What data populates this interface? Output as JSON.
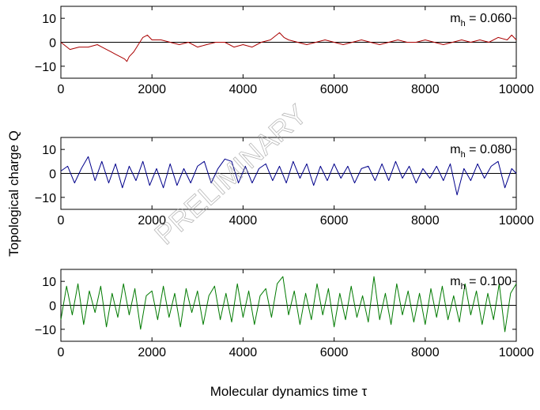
{
  "figure": {
    "ylabel": "Topological charge Q",
    "xlabel": "Molecular dynamics time τ",
    "watermark": "PRELIMINARY"
  },
  "chart_data": [
    {
      "type": "line",
      "annotation": {
        "main": "m",
        "sub": "h",
        "value": " = 0.060"
      },
      "xlim": [
        0,
        10000
      ],
      "ylim": [
        -15,
        15
      ],
      "xticks": [
        0,
        2000,
        4000,
        6000,
        8000,
        10000
      ],
      "yticks": [
        -10,
        0,
        10
      ],
      "xtick_labels": [
        "0",
        "2000",
        "4000",
        "6000",
        "8000",
        "10000"
      ],
      "ytick_labels": [
        "−10",
        "0",
        "10"
      ],
      "grid": false,
      "color": "#aa0000",
      "x": [
        0,
        200,
        400,
        600,
        800,
        1000,
        1100,
        1200,
        1300,
        1400,
        1450,
        1500,
        1600,
        1700,
        1800,
        1900,
        2000,
        2200,
        2400,
        2600,
        2800,
        3000,
        3200,
        3400,
        3600,
        3800,
        4000,
        4200,
        4400,
        4600,
        4800,
        4900,
        5000,
        5200,
        5400,
        5600,
        5800,
        6000,
        6200,
        6400,
        6600,
        6800,
        7000,
        7200,
        7400,
        7600,
        7800,
        8000,
        8200,
        8400,
        8600,
        8800,
        9000,
        9200,
        9400,
        9600,
        9800,
        9900,
        10000
      ],
      "values": [
        0,
        -3,
        -2,
        -2,
        -1,
        -3,
        -4,
        -5,
        -6,
        -7,
        -8,
        -6,
        -4,
        -1,
        2,
        3,
        1,
        1,
        0,
        -1,
        0,
        -2,
        -1,
        0,
        0,
        -2,
        -1,
        -2,
        0,
        1,
        4,
        2,
        1,
        0,
        -1,
        0,
        1,
        0,
        -1,
        0,
        1,
        0,
        -1,
        0,
        1,
        0,
        0,
        1,
        0,
        -1,
        0,
        1,
        0,
        1,
        0,
        2,
        1,
        3,
        1
      ]
    },
    {
      "type": "line",
      "annotation": {
        "main": "m",
        "sub": "h",
        "value": " = 0.080"
      },
      "xlim": [
        0,
        10000
      ],
      "ylim": [
        -15,
        15
      ],
      "xticks": [
        0,
        2000,
        4000,
        6000,
        8000,
        10000
      ],
      "yticks": [
        -10,
        0,
        10
      ],
      "xtick_labels": [
        "0",
        "2000",
        "4000",
        "6000",
        "8000",
        "10000"
      ],
      "ytick_labels": [
        "−10",
        "0",
        "10"
      ],
      "grid": false,
      "color": "#00008b",
      "x": [
        0,
        150,
        300,
        450,
        600,
        750,
        900,
        1050,
        1200,
        1350,
        1500,
        1650,
        1800,
        1950,
        2100,
        2250,
        2400,
        2550,
        2700,
        2850,
        3000,
        3150,
        3300,
        3450,
        3600,
        3750,
        3900,
        4050,
        4200,
        4350,
        4500,
        4650,
        4800,
        4950,
        5100,
        5250,
        5400,
        5550,
        5700,
        5850,
        6000,
        6150,
        6300,
        6450,
        6600,
        6750,
        6900,
        7050,
        7200,
        7350,
        7500,
        7650,
        7800,
        7950,
        8100,
        8250,
        8400,
        8550,
        8700,
        8850,
        9000,
        9150,
        9300,
        9450,
        9600,
        9750,
        9900,
        10000
      ],
      "values": [
        1,
        3,
        -4,
        2,
        7,
        -3,
        5,
        -4,
        4,
        -6,
        3,
        -3,
        5,
        -5,
        2,
        -6,
        4,
        -5,
        2,
        -4,
        3,
        5,
        -4,
        2,
        6,
        5,
        -4,
        3,
        -4,
        2,
        4,
        -3,
        3,
        -4,
        5,
        -2,
        4,
        -5,
        3,
        -3,
        4,
        -2,
        3,
        -4,
        2,
        3,
        -3,
        4,
        -3,
        5,
        -2,
        3,
        -4,
        2,
        -2,
        3,
        -3,
        4,
        -9,
        2,
        -3,
        4,
        -2,
        3,
        5,
        -6,
        2,
        0
      ]
    },
    {
      "type": "line",
      "annotation": {
        "main": "m",
        "sub": "h",
        "value": " = 0.100"
      },
      "xlim": [
        0,
        10000
      ],
      "ylim": [
        -15,
        15
      ],
      "xticks": [
        0,
        2000,
        4000,
        6000,
        8000,
        10000
      ],
      "yticks": [
        -10,
        0,
        10
      ],
      "xtick_labels": [
        "0",
        "2000",
        "4000",
        "6000",
        "8000",
        "10000"
      ],
      "ytick_labels": [
        "−10",
        "0",
        "10"
      ],
      "grid": false,
      "color": "#007a00",
      "x": [
        0,
        125,
        250,
        375,
        500,
        625,
        750,
        875,
        1000,
        1125,
        1250,
        1375,
        1500,
        1625,
        1750,
        1875,
        2000,
        2125,
        2250,
        2375,
        2500,
        2625,
        2750,
        2875,
        3000,
        3125,
        3250,
        3375,
        3500,
        3625,
        3750,
        3875,
        4000,
        4125,
        4250,
        4375,
        4500,
        4625,
        4750,
        4875,
        5000,
        5125,
        5250,
        5375,
        5500,
        5625,
        5750,
        5875,
        6000,
        6125,
        6250,
        6375,
        6500,
        6625,
        6750,
        6875,
        7000,
        7125,
        7250,
        7375,
        7500,
        7625,
        7750,
        7875,
        8000,
        8125,
        8250,
        8375,
        8500,
        8625,
        8750,
        8875,
        9000,
        9125,
        9250,
        9375,
        9500,
        9625,
        9750,
        9875,
        10000
      ],
      "values": [
        -6,
        8,
        -4,
        9,
        -8,
        6,
        -3,
        8,
        -9,
        5,
        -5,
        9,
        -4,
        7,
        -10,
        4,
        6,
        -6,
        8,
        -5,
        5,
        -9,
        7,
        -3,
        6,
        -8,
        4,
        8,
        -6,
        5,
        -7,
        9,
        -5,
        6,
        -8,
        4,
        7,
        -5,
        9,
        12,
        -4,
        6,
        -8,
        5,
        -6,
        9,
        -4,
        7,
        -9,
        5,
        -6,
        8,
        -5,
        4,
        -7,
        12,
        -6,
        5,
        -8,
        9,
        -4,
        6,
        -7,
        5,
        -8,
        7,
        -5,
        8,
        -6,
        4,
        -7,
        9,
        -4,
        6,
        -8,
        5,
        -6,
        9,
        -11,
        5,
        9
      ]
    }
  ]
}
